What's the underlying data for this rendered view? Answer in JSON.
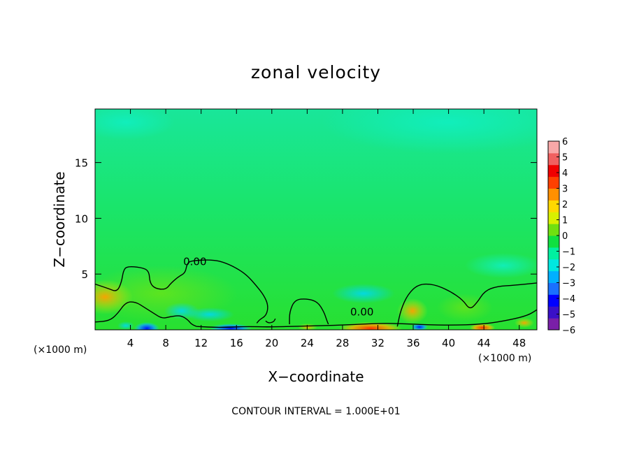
{
  "chart_data": {
    "type": "heatmap",
    "title": "zonal velocity",
    "xlabel": "X−coordinate",
    "ylabel": "Z−coordinate",
    "x_unit_left": "(×1000 m)",
    "x_unit_right": "(×1000 m)",
    "xlim": [
      0,
      50
    ],
    "ylim": [
      0,
      19.8
    ],
    "x_ticks": [
      4,
      8,
      12,
      16,
      20,
      24,
      28,
      32,
      36,
      40,
      44,
      48
    ],
    "y_ticks": [
      5,
      10,
      15
    ],
    "x_tick_labels": [
      "4",
      "8",
      "12",
      "16",
      "20",
      "24",
      "28",
      "32",
      "36",
      "40",
      "44",
      "48"
    ],
    "y_tick_labels": [
      "5",
      "10",
      "15"
    ],
    "colorbar": {
      "range": [
        -6,
        6
      ],
      "tick_values": [
        6,
        5,
        4,
        3,
        2,
        1,
        0,
        -1,
        -2,
        -3,
        -4,
        -5,
        -6
      ],
      "tick_labels": [
        "6",
        "5",
        "4",
        "3",
        "2",
        "1",
        "0",
        "−1",
        "−2",
        "−3",
        "−4",
        "−5",
        "−6"
      ],
      "colors": [
        "#7a1fa8",
        "#3a10c8",
        "#0000ff",
        "#1a70ff",
        "#00b0ff",
        "#00e8e0",
        "#00f0a0",
        "#10e040",
        "#70e010",
        "#d8f000",
        "#ffd800",
        "#ff9000",
        "#ff4000",
        "#f00000",
        "#f06060",
        "#f8a8a8"
      ]
    },
    "contour_labels": [
      {
        "text": "0.00",
        "x": 11.3,
        "z": 6.1
      },
      {
        "text": "0.00",
        "x": 30.2,
        "z": 1.6
      }
    ],
    "contour_zero_main": [
      [
        0,
        4.1
      ],
      [
        1.5,
        3.7
      ],
      [
        2.5,
        3.4
      ],
      [
        3.0,
        4.3
      ],
      [
        3.2,
        5.3
      ],
      [
        3.6,
        5.7
      ],
      [
        5.2,
        5.6
      ],
      [
        6.1,
        5.3
      ],
      [
        6.2,
        4.2
      ],
      [
        6.8,
        3.7
      ],
      [
        8.0,
        3.6
      ],
      [
        8.6,
        4.2
      ],
      [
        9.5,
        4.8
      ],
      [
        10.2,
        5.1
      ],
      [
        10.4,
        5.9
      ],
      [
        10.8,
        6.2
      ],
      [
        13.3,
        6.3
      ],
      [
        14.8,
        6.0
      ],
      [
        16.3,
        5.4
      ],
      [
        17.3,
        4.8
      ],
      [
        18.2,
        4.0
      ],
      [
        19.1,
        3.1
      ],
      [
        19.6,
        2.2
      ],
      [
        19.4,
        1.3
      ],
      [
        18.6,
        0.9
      ],
      [
        18.3,
        0.6
      ]
    ],
    "contour_zero_mid": [
      [
        22.0,
        0.5
      ],
      [
        22.0,
        1.6
      ],
      [
        22.6,
        2.7
      ],
      [
        24.0,
        2.8
      ],
      [
        25.2,
        2.5
      ],
      [
        25.9,
        1.6
      ],
      [
        26.2,
        0.9
      ],
      [
        26.4,
        0.5
      ]
    ],
    "contour_zero_right": [
      [
        34.2,
        0.3
      ],
      [
        34.6,
        1.8
      ],
      [
        35.4,
        3.2
      ],
      [
        36.6,
        4.1
      ],
      [
        38.3,
        4.1
      ],
      [
        40.1,
        3.5
      ],
      [
        41.6,
        2.7
      ],
      [
        42.4,
        1.8
      ],
      [
        43.2,
        2.4
      ],
      [
        44.1,
        3.5
      ],
      [
        45.5,
        3.9
      ],
      [
        47.5,
        4.0
      ],
      [
        50,
        4.2
      ]
    ],
    "contour_zero_lower": [
      [
        0,
        0.7
      ],
      [
        1.6,
        0.8
      ],
      [
        2.5,
        1.4
      ],
      [
        3.5,
        2.5
      ],
      [
        4.6,
        2.5
      ],
      [
        5.6,
        2.0
      ],
      [
        6.6,
        1.5
      ],
      [
        7.6,
        1.0
      ],
      [
        8.6,
        1.2
      ],
      [
        9.7,
        1.3
      ],
      [
        10.5,
        0.9
      ],
      [
        10.9,
        0.5
      ],
      [
        11.5,
        0.3
      ]
    ],
    "contour_zero_floor": [
      [
        11.5,
        0.3
      ],
      [
        14.0,
        0.2
      ],
      [
        17.0,
        0.3
      ],
      [
        20.0,
        0.25
      ],
      [
        24.0,
        0.35
      ],
      [
        27.0,
        0.4
      ],
      [
        30.0,
        0.5
      ],
      [
        33.0,
        0.6
      ],
      [
        36.0,
        0.5
      ],
      [
        40.0,
        0.4
      ],
      [
        44.0,
        0.5
      ],
      [
        47.0,
        0.9
      ],
      [
        49.0,
        1.3
      ],
      [
        50,
        1.8
      ]
    ],
    "contour_zero_small": [
      [
        20.4,
        1.0
      ],
      [
        20.2,
        0.7
      ],
      [
        19.6,
        0.6
      ],
      [
        19.3,
        0.8
      ]
    ]
  },
  "footer": {
    "text": "CONTOUR INTERVAL = 1.000E+01"
  },
  "colors": {
    "field_base": "#1ee34a",
    "field_upper": "#18e890",
    "field_top_right": "#10ecb0",
    "warm": "#ff5000",
    "cold": "#1030ff"
  }
}
